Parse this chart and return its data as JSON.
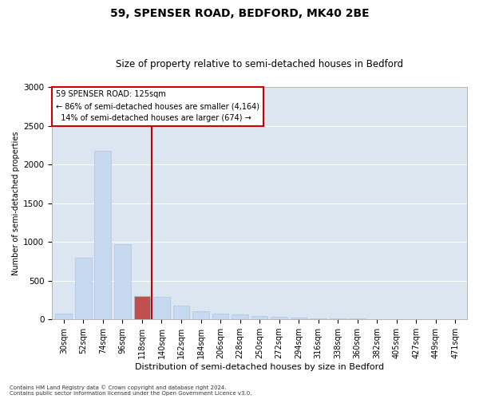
{
  "title": "59, SPENSER ROAD, BEDFORD, MK40 2BE",
  "subtitle": "Size of property relative to semi-detached houses in Bedford",
  "xlabel": "Distribution of semi-detached houses by size in Bedford",
  "ylabel": "Number of semi-detached properties",
  "property_label": "59 SPENSER ROAD: 125sqm",
  "pct_smaller": 86,
  "count_smaller": 4164,
  "pct_larger": 14,
  "count_larger": 674,
  "categories": [
    "30sqm",
    "52sqm",
    "74sqm",
    "96sqm",
    "118sqm",
    "140sqm",
    "162sqm",
    "184sqm",
    "206sqm",
    "228sqm",
    "250sqm",
    "272sqm",
    "294sqm",
    "316sqm",
    "338sqm",
    "360sqm",
    "382sqm",
    "405sqm",
    "427sqm",
    "449sqm",
    "471sqm"
  ],
  "values": [
    75,
    800,
    2175,
    975,
    300,
    290,
    180,
    110,
    75,
    60,
    45,
    30,
    20,
    15,
    10,
    8,
    5,
    0,
    0,
    0,
    0
  ],
  "bar_color": "#c6d9f0",
  "bar_edge_color": "#b0c8e0",
  "highlight_bar_index": 4,
  "highlight_bar_color": "#c0504d",
  "vline_color": "#cc0000",
  "ylim": [
    0,
    3000
  ],
  "yticks": [
    0,
    500,
    1000,
    1500,
    2000,
    2500,
    3000
  ],
  "background_color": "#dce6f1",
  "annotation_box_color": "#ffffff",
  "annotation_box_edge": "#cc0000",
  "footnote1": "Contains HM Land Registry data © Crown copyright and database right 2024.",
  "footnote2": "Contains public sector information licensed under the Open Government Licence v3.0."
}
